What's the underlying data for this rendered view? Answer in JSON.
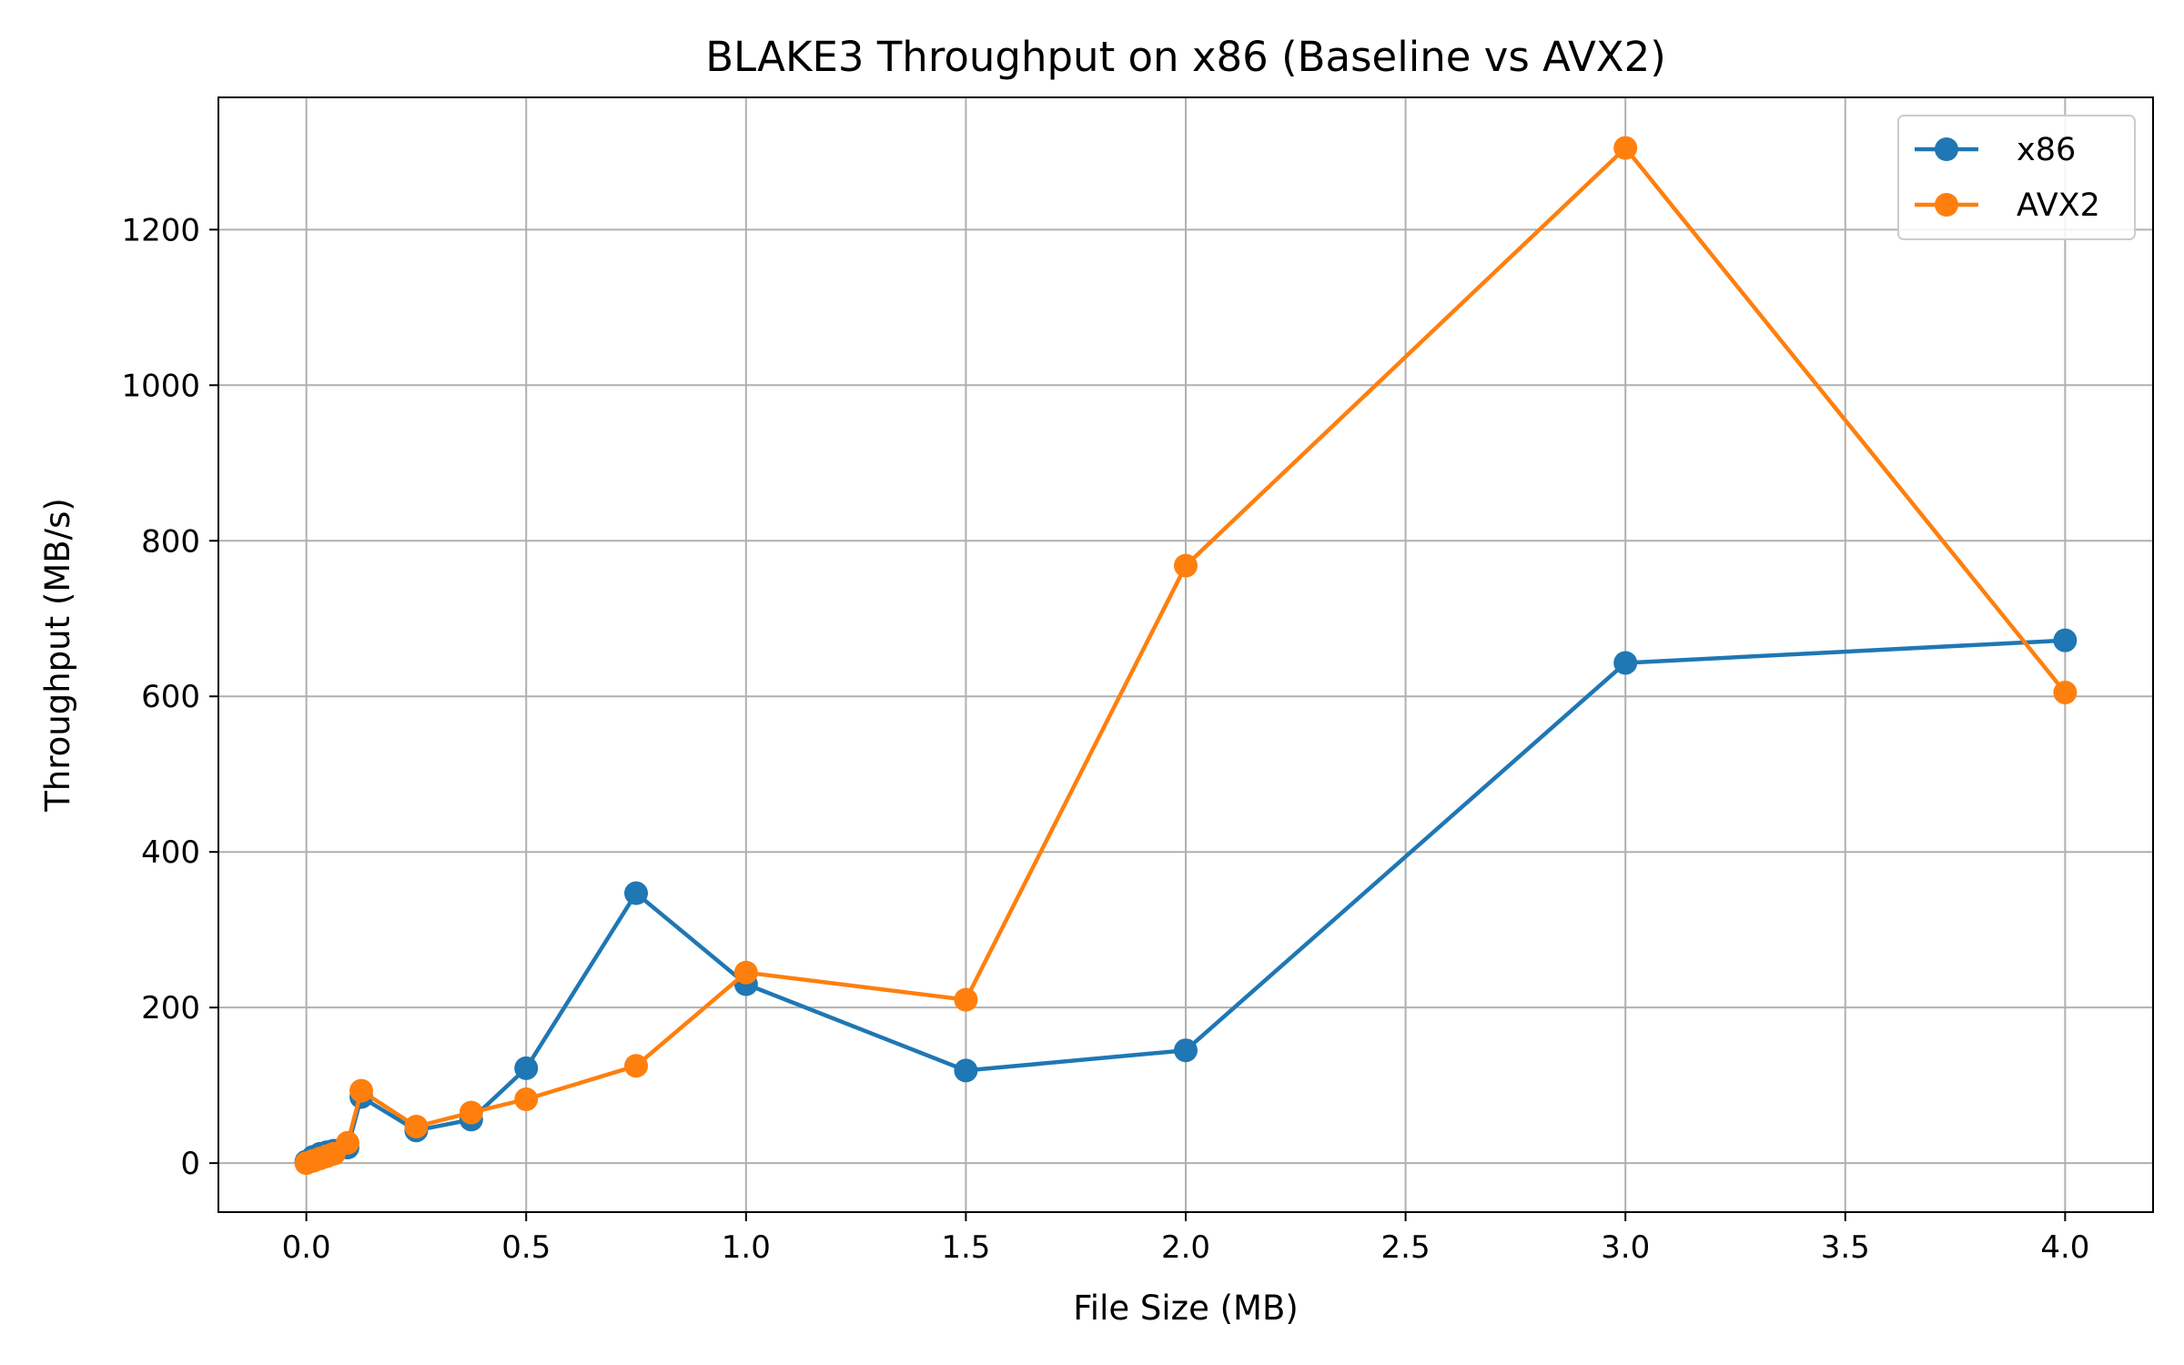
{
  "chart_data": {
    "type": "line",
    "title": "BLAKE3 Throughput on x86 (Baseline vs AVX2)",
    "xlabel": "File Size (MB)",
    "ylabel": "Throughput (MB/s)",
    "xlim": [
      -0.2,
      4.2
    ],
    "ylim": [
      -63,
      1370
    ],
    "xticks": [
      0.0,
      0.5,
      1.0,
      1.5,
      2.0,
      2.5,
      3.0,
      3.5,
      4.0
    ],
    "xtick_labels": [
      "0.0",
      "0.5",
      "1.0",
      "1.5",
      "2.0",
      "2.5",
      "3.0",
      "3.5",
      "4.0"
    ],
    "yticks": [
      0,
      200,
      400,
      600,
      800,
      1000,
      1200
    ],
    "ytick_labels": [
      "0",
      "200",
      "400",
      "600",
      "800",
      "1000",
      "1200"
    ],
    "grid": true,
    "legend_position": "top-right",
    "series": [
      {
        "name": "x86",
        "color": "#1f77b4",
        "marker": "circle",
        "x": [
          0.0,
          0.0156,
          0.0313,
          0.0469,
          0.0625,
          0.0938,
          0.125,
          0.25,
          0.375,
          0.5,
          0.75,
          1.0,
          1.5,
          2.0,
          3.0,
          4.0
        ],
        "y": [
          2,
          8,
          12,
          14,
          16,
          20,
          85,
          42,
          56,
          122,
          347,
          230,
          119,
          145,
          643,
          672
        ]
      },
      {
        "name": "AVX2",
        "color": "#ff7f0e",
        "marker": "circle",
        "x": [
          0.0,
          0.0156,
          0.0313,
          0.0469,
          0.0625,
          0.0938,
          0.125,
          0.25,
          0.375,
          0.5,
          0.75,
          1.0,
          1.5,
          2.0,
          3.0,
          4.0
        ],
        "y": [
          0,
          3,
          6,
          9,
          12,
          26,
          93,
          47,
          65,
          82,
          125,
          245,
          210,
          768,
          1305,
          605
        ]
      }
    ]
  }
}
